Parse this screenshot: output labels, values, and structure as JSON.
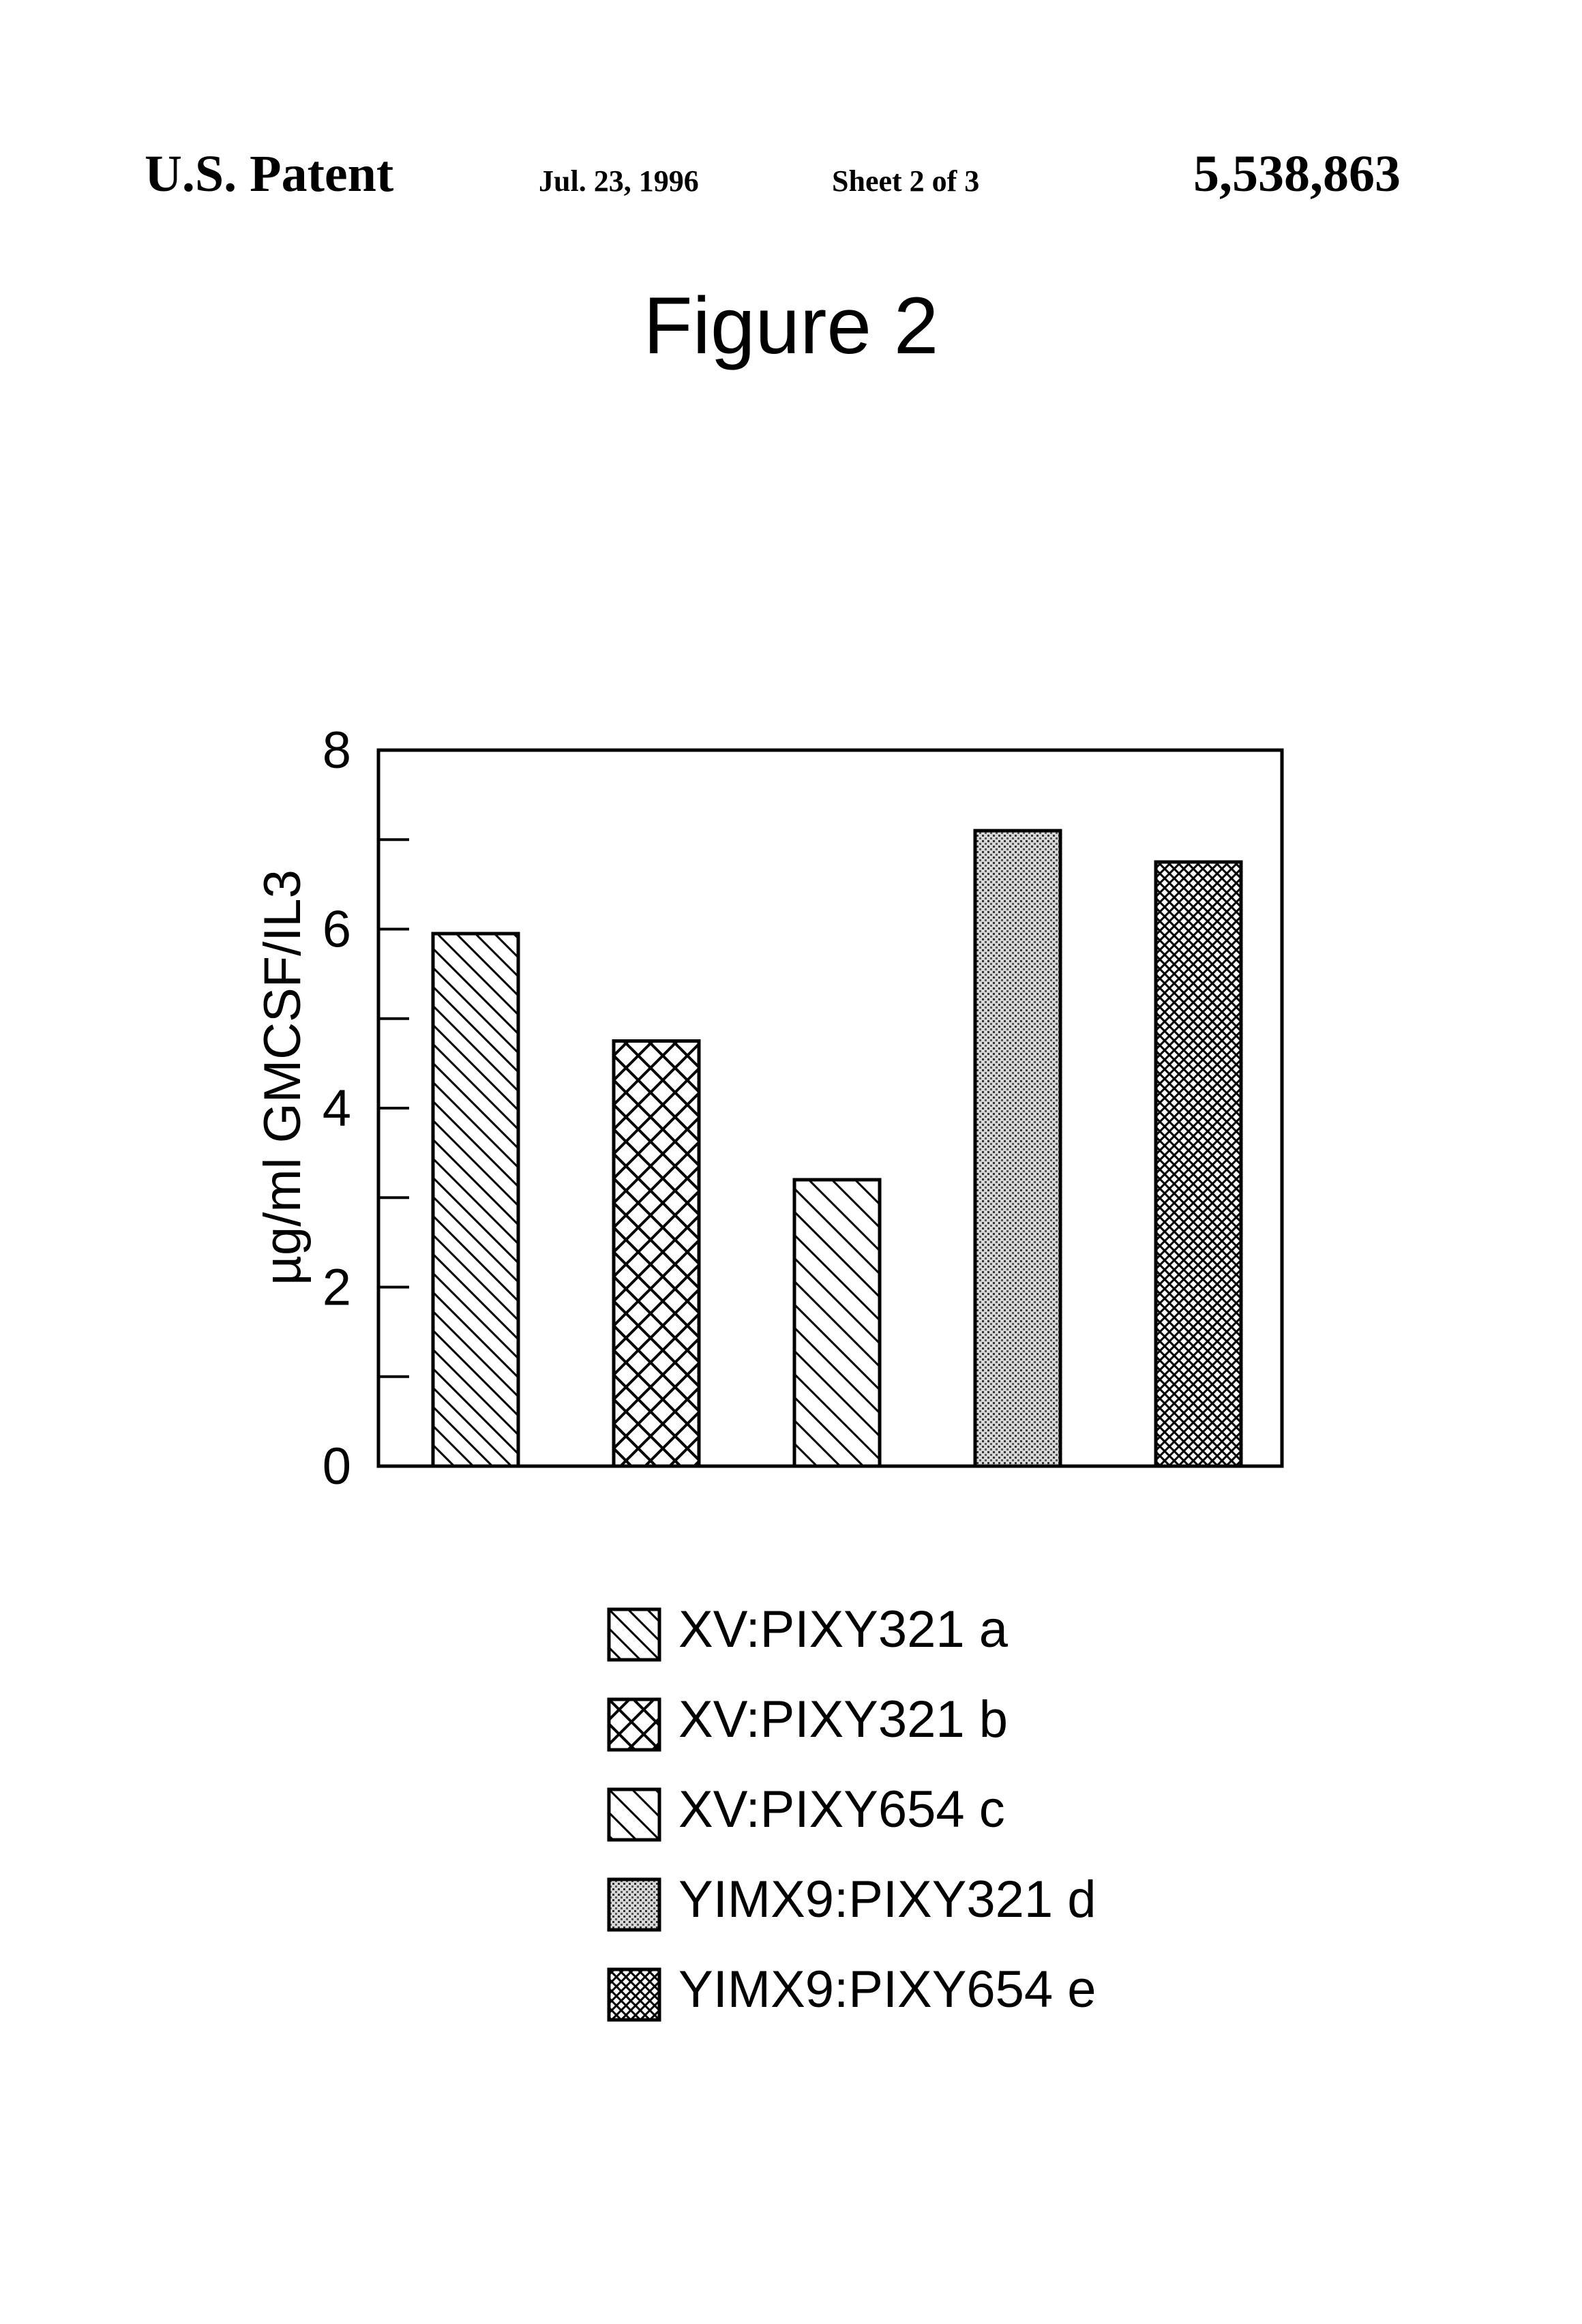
{
  "header": {
    "left": "U.S. Patent",
    "date": "Jul. 23, 1996",
    "sheet": "Sheet 2 of 3",
    "number": "5,538,863"
  },
  "chart_data": {
    "type": "bar",
    "title": "Figure 2",
    "ylabel": "µg/ml GMCSF/IL3",
    "xlabel": "",
    "ylim": [
      0,
      8
    ],
    "yticks": [
      0,
      2,
      4,
      6,
      8
    ],
    "categories": [
      "XV:PIXY321 a",
      "XV:PIXY321 b",
      "XV:PIXY654 c",
      "YIMX9:PIXY321 d",
      "YIMX9:PIXY654 e"
    ],
    "values": [
      5.95,
      4.75,
      3.2,
      7.1,
      6.75
    ],
    "patterns": [
      "diagonal-hatch",
      "cross-hatch",
      "diagonal-hatch-wide",
      "fine-stipple",
      "fine-crosshatch"
    ],
    "legend_position": "below"
  }
}
